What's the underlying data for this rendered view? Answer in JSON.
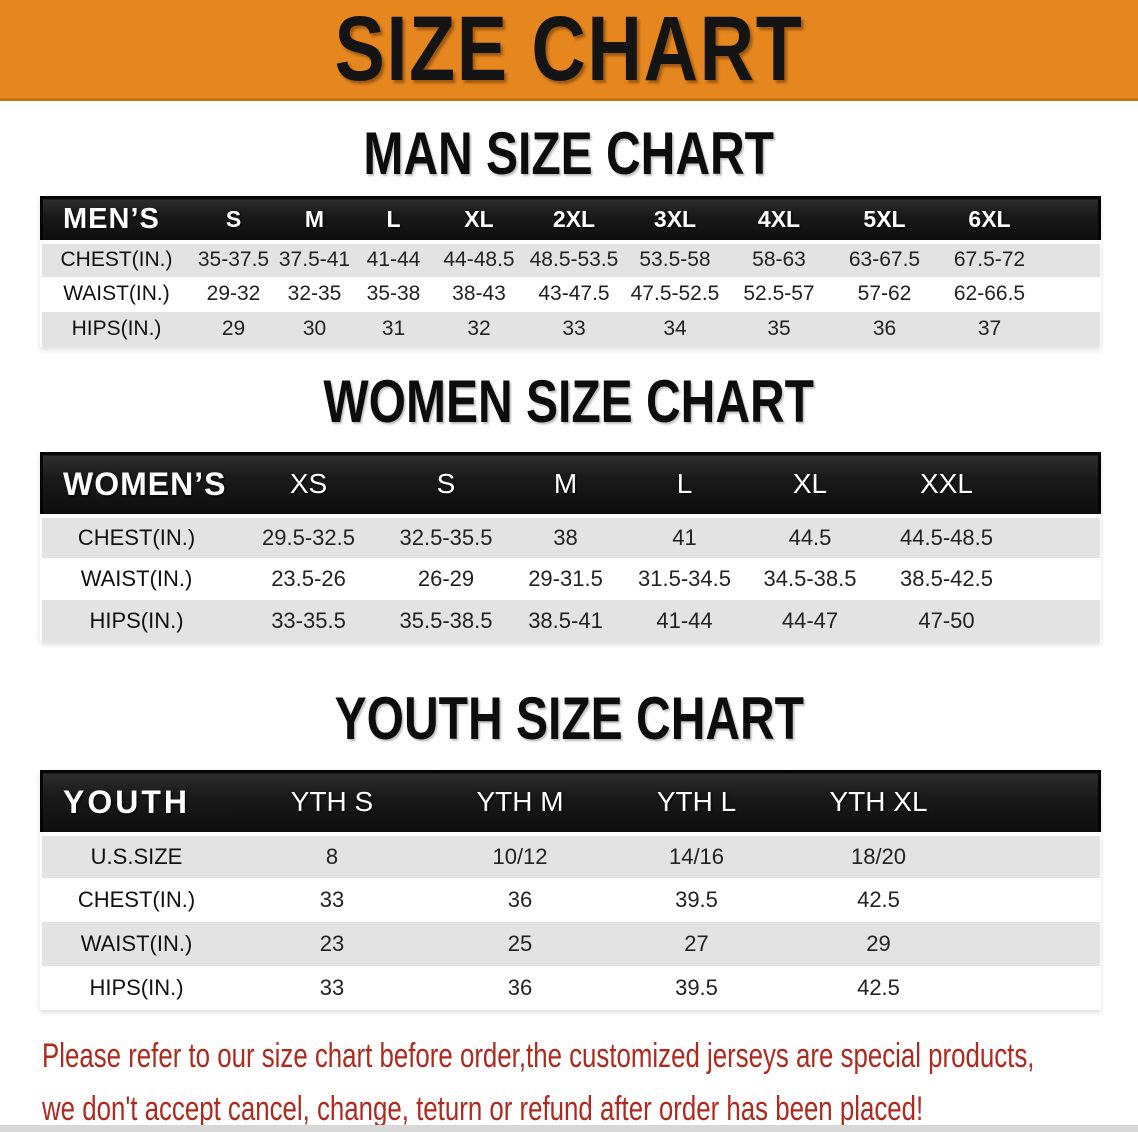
{
  "banner": {
    "title": "SIZE CHART"
  },
  "sections": [
    {
      "heading": "MAN SIZE CHART",
      "table": {
        "header_label": "MEN’S",
        "columns": [
          "S",
          "M",
          "L",
          "XL",
          "2XL",
          "3XL",
          "4XL",
          "5XL",
          "6XL"
        ],
        "rows": [
          {
            "label": "CHEST(IN.)",
            "values": [
              "35-37.5",
              "37.5-41",
              "41-44",
              "44-48.5",
              "48.5-53.5",
              "53.5-58",
              "58-63",
              "63-67.5",
              "67.5-72"
            ]
          },
          {
            "label": "WAIST(IN.)",
            "values": [
              "29-32",
              "32-35",
              "35-38",
              "38-43",
              "43-47.5",
              "47.5-52.5",
              "52.5-57",
              "57-62",
              "62-66.5"
            ]
          },
          {
            "label": "HIPS(IN.)",
            "values": [
              "29",
              "30",
              "31",
              "32",
              "33",
              "34",
              "35",
              "36",
              "37"
            ]
          }
        ]
      }
    },
    {
      "heading": "WOMEN SIZE CHART",
      "table": {
        "header_label": "WOMEN’S",
        "columns": [
          "XS",
          "S",
          "M",
          "L",
          "XL",
          "XXL"
        ],
        "rows": [
          {
            "label": "CHEST(IN.)",
            "values": [
              "29.5-32.5",
              "32.5-35.5",
              "38",
              "41",
              "44.5",
              "44.5-48.5"
            ]
          },
          {
            "label": "WAIST(IN.)",
            "values": [
              "23.5-26",
              "26-29",
              "29-31.5",
              "31.5-34.5",
              "34.5-38.5",
              "38.5-42.5"
            ]
          },
          {
            "label": "HIPS(IN.)",
            "values": [
              "33-35.5",
              "35.5-38.5",
              "38.5-41",
              "41-44",
              "44-47",
              "47-50"
            ]
          }
        ]
      }
    },
    {
      "heading": "YOUTH SIZE CHART",
      "table": {
        "header_label": "YOUTH",
        "columns": [
          "YTH S",
          "YTH M",
          "YTH L",
          "YTH XL"
        ],
        "rows": [
          {
            "label": "U.S.SIZE",
            "values": [
              "8",
              "10/12",
              "14/16",
              "18/20"
            ]
          },
          {
            "label": "CHEST(IN.)",
            "values": [
              "33",
              "36",
              "39.5",
              "42.5"
            ]
          },
          {
            "label": "WAIST(IN.)",
            "values": [
              "23",
              "25",
              "27",
              "29"
            ]
          },
          {
            "label": "HIPS(IN.)",
            "values": [
              "33",
              "36",
              "39.5",
              "42.5"
            ]
          }
        ]
      }
    }
  ],
  "footer": {
    "line1": "Please refer to our size chart before order,the customized jerseys are special products,",
    "line2": "we don't accept cancel, change, teturn or refund after order has been placed!"
  },
  "colors": {
    "banner_orange": "#E5861E",
    "header_black": "#1A1A1A",
    "row_gray": "#E3E3E3",
    "footer_red": "#AE2A1E"
  }
}
